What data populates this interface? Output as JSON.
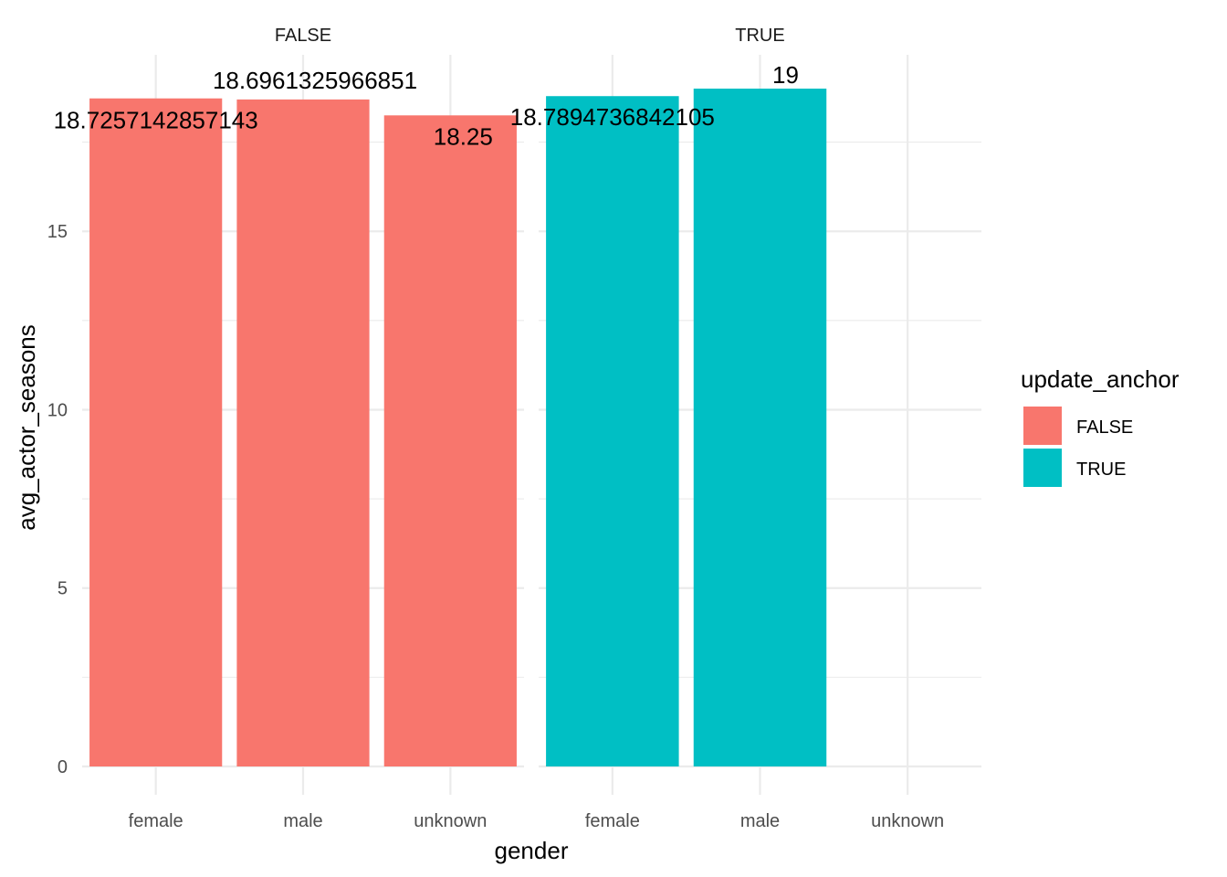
{
  "chart_data": {
    "type": "bar",
    "facet_var": "update_anchor",
    "facets": [
      "FALSE",
      "TRUE"
    ],
    "categories": [
      "female",
      "male",
      "unknown"
    ],
    "series": [
      {
        "name": "FALSE",
        "facet": "FALSE",
        "values": [
          18.7257142857143,
          18.6961325966851,
          18.25
        ],
        "labels": [
          "18.7257142857143",
          "18.6961325966851",
          "18.25"
        ],
        "color": "#F8766D"
      },
      {
        "name": "TRUE",
        "facet": "TRUE",
        "values": [
          18.7894736842105,
          19,
          null
        ],
        "labels": [
          "18.7894736842105",
          "19",
          null
        ],
        "color": "#00BFC4"
      }
    ],
    "xlabel": "gender",
    "ylabel": "avg_actor_seasons",
    "ylim": [
      0,
      19
    ],
    "yticks": [
      0,
      5,
      10,
      15
    ],
    "grid": true,
    "legend": {
      "title": "update_anchor",
      "entries": [
        "FALSE",
        "TRUE"
      ],
      "placement": "right"
    }
  }
}
